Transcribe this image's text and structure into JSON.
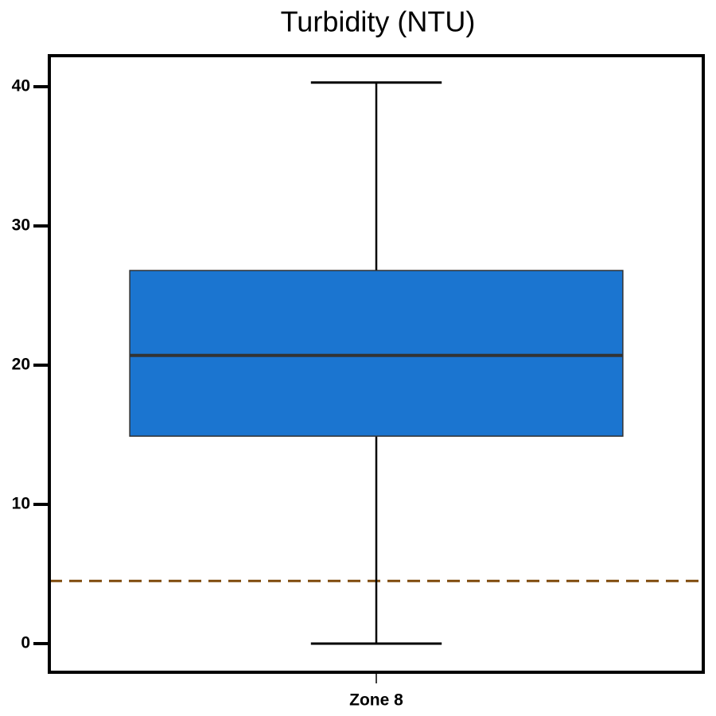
{
  "chart_data": {
    "type": "box",
    "title": "Turbidity (NTU)",
    "categories": [
      "Zone 8"
    ],
    "boxes": [
      {
        "whisker_low": 0,
        "q1": 14.9,
        "median": 20.7,
        "q3": 26.8,
        "whisker_high": 40.3
      }
    ],
    "color": "#1b75d0",
    "median_color": "#333333",
    "reference_line": {
      "value": 4.5,
      "color": "#7f4a0b",
      "dashed": true
    },
    "ylim": [
      -2.06,
      42.23
    ],
    "yticks": [
      0,
      10,
      20,
      30,
      40
    ]
  }
}
